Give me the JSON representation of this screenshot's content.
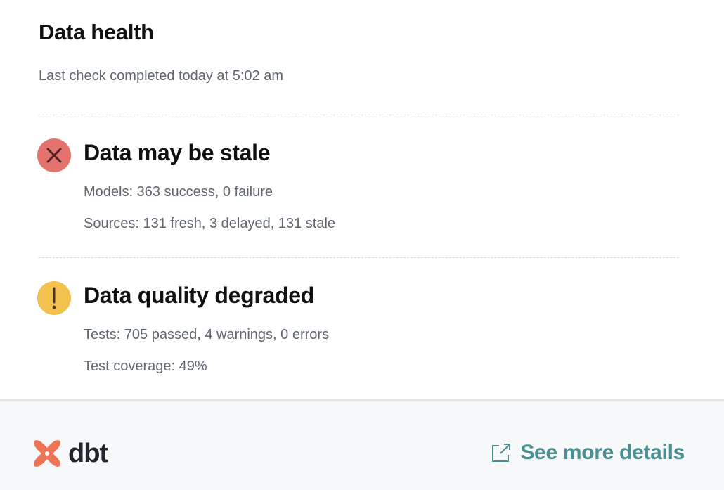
{
  "header": {
    "title": "Data health",
    "subtitle": "Last check completed today at 5:02 am"
  },
  "sections": [
    {
      "status": "error",
      "icon": "x-circle-icon",
      "color": "#e5736d",
      "title": "Data may be stale",
      "lines": [
        "Models: 363 success, 0 failure",
        "Sources: 131 fresh, 3 delayed, 131 stale"
      ]
    },
    {
      "status": "warning",
      "icon": "exclamation-circle-icon",
      "color": "#f2c14e",
      "title": "Data quality degraded",
      "lines": [
        "Tests: 705 passed, 4 warnings, 0 errors",
        "Test coverage: 49%"
      ]
    }
  ],
  "footer": {
    "logo": "dbt",
    "link_label": "See more details",
    "link_icon": "external-link-icon",
    "accent": "#4a8f91",
    "brand": "#ef7456"
  }
}
